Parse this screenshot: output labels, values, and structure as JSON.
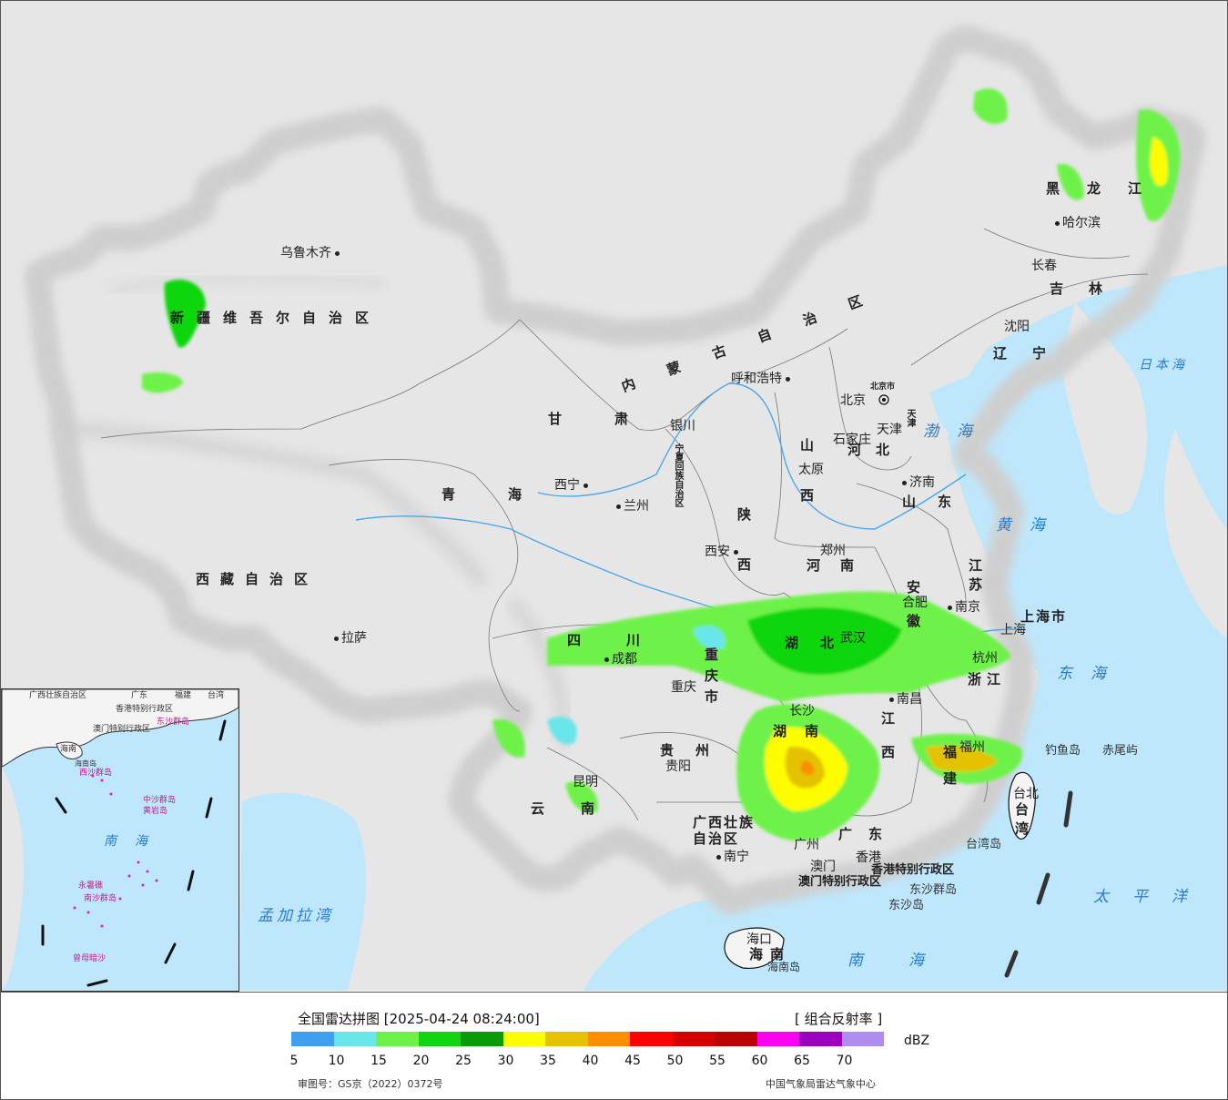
{
  "legend": {
    "title": "全国雷达拼图 [2025-04-24 08:24:00]",
    "product": "[ 组合反射率 ]",
    "unit": "dBZ",
    "ticks": [
      "5",
      "10",
      "15",
      "20",
      "25",
      "30",
      "35",
      "40",
      "45",
      "50",
      "55",
      "60",
      "65",
      "70"
    ],
    "colors": [
      "#3f9ff0",
      "#69e6ea",
      "#6ef24a",
      "#11d60f",
      "#0a9c08",
      "#fdfd03",
      "#e5c202",
      "#fd8e00",
      "#fd0100",
      "#d40000",
      "#bb0000",
      "#fd00f0",
      "#9a00bd",
      "#ae8ff0"
    ],
    "review_no": "审图号：GS京（2022）0372号",
    "source": "中国气象局雷达气象中心"
  },
  "cities": [
    {
      "name": "乌鲁木齐",
      "dot": "after"
    },
    {
      "name": "哈尔滨",
      "dot": "before"
    },
    {
      "name": "长春",
      "dot": "none"
    },
    {
      "name": "沈阳",
      "dot": "none"
    },
    {
      "name": "呼和浩特",
      "dot": "after"
    },
    {
      "name": "北京",
      "dot": "after"
    },
    {
      "name": "天津",
      "dot": "none"
    },
    {
      "name": "石家庄",
      "dot": "none"
    },
    {
      "name": "太原",
      "dot": "none"
    },
    {
      "name": "济南",
      "dot": "before"
    },
    {
      "name": "银川",
      "dot": "none"
    },
    {
      "name": "西宁",
      "dot": "after"
    },
    {
      "name": "兰州",
      "dot": "before"
    },
    {
      "name": "西安",
      "dot": "after"
    },
    {
      "name": "郑州",
      "dot": "none"
    },
    {
      "name": "合肥",
      "dot": "none"
    },
    {
      "name": "南京",
      "dot": "before"
    },
    {
      "name": "上海",
      "dot": "none"
    },
    {
      "name": "杭州",
      "dot": "none"
    },
    {
      "name": "武汉",
      "dot": "none"
    },
    {
      "name": "成都",
      "dot": "before"
    },
    {
      "name": "重庆",
      "dot": "none"
    },
    {
      "name": "拉萨",
      "dot": "before"
    },
    {
      "name": "贵阳",
      "dot": "none"
    },
    {
      "name": "昆明",
      "dot": "none"
    },
    {
      "name": "长沙",
      "dot": "none"
    },
    {
      "name": "南昌",
      "dot": "before"
    },
    {
      "name": "福州",
      "dot": "none"
    },
    {
      "name": "台北",
      "dot": "none"
    },
    {
      "name": "广州",
      "dot": "none"
    },
    {
      "name": "南宁",
      "dot": "before"
    },
    {
      "name": "香港",
      "dot": "none"
    },
    {
      "name": "澳门",
      "dot": "none"
    },
    {
      "name": "海口",
      "dot": "none"
    }
  ],
  "provinces": [
    "新疆维吾尔自治区",
    "西藏自治区",
    "青海",
    "甘肃",
    "内蒙古自治区",
    "黑龙江",
    "吉林",
    "辽宁",
    "河北",
    "山西",
    "陕西",
    "宁夏回族自治区",
    "河南",
    "山东",
    "江苏",
    "安徽",
    "湖北",
    "四川",
    "重庆市",
    "贵州",
    "云南",
    "湖南",
    "江西",
    "浙江",
    "福建",
    "广东",
    "广西壮族自治区",
    "海南",
    "台湾",
    "上海市",
    "天津",
    "北京市",
    "香港特别行政区",
    "澳门特别行政区"
  ],
  "seas": [
    "日本海",
    "渤海",
    "黄海",
    "东海",
    "太平洋",
    "南海",
    "孟加拉湾"
  ],
  "islands": [
    "钓鱼岛",
    "赤尾屿",
    "台湾岛",
    "东沙群岛",
    "东沙岛",
    "海南岛"
  ],
  "inset_labels": [
    "广西壮族自治区",
    "广东",
    "福建",
    "台湾",
    "香港特别行政区",
    "澳门特别行政区",
    "海南",
    "海南岛",
    "东沙群岛",
    "西沙群岛",
    "中沙群岛",
    "黄岩岛",
    "南海",
    "永暑礁",
    "南沙群岛",
    "曾母暗沙"
  ]
}
